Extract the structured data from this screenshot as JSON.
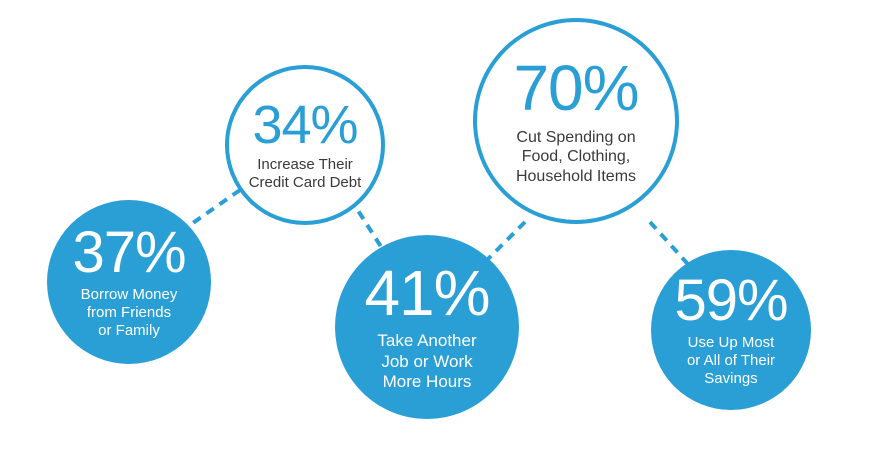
{
  "stats": [
    {
      "id": "credit-card",
      "percent": "34%",
      "label": "Increase Their\nCredit Card Debt",
      "style": "outline"
    },
    {
      "id": "cut-spending",
      "percent": "70%",
      "label": "Cut Spending on\nFood, Clothing,\nHousehold Items",
      "style": "outline"
    },
    {
      "id": "borrow-money",
      "percent": "37%",
      "label": "Borrow Money\nfrom Friends\nor Family",
      "style": "filled"
    },
    {
      "id": "another-job",
      "percent": "41%",
      "label": "Take Another\nJob or Work\nMore Hours",
      "style": "filled"
    },
    {
      "id": "savings",
      "percent": "59%",
      "label": "Use Up Most\nor All of Their\nSavings",
      "style": "filled"
    }
  ],
  "colors": {
    "accent": "#2a9fd6",
    "text_dark": "#3a3a3a",
    "background": "#ffffff"
  }
}
